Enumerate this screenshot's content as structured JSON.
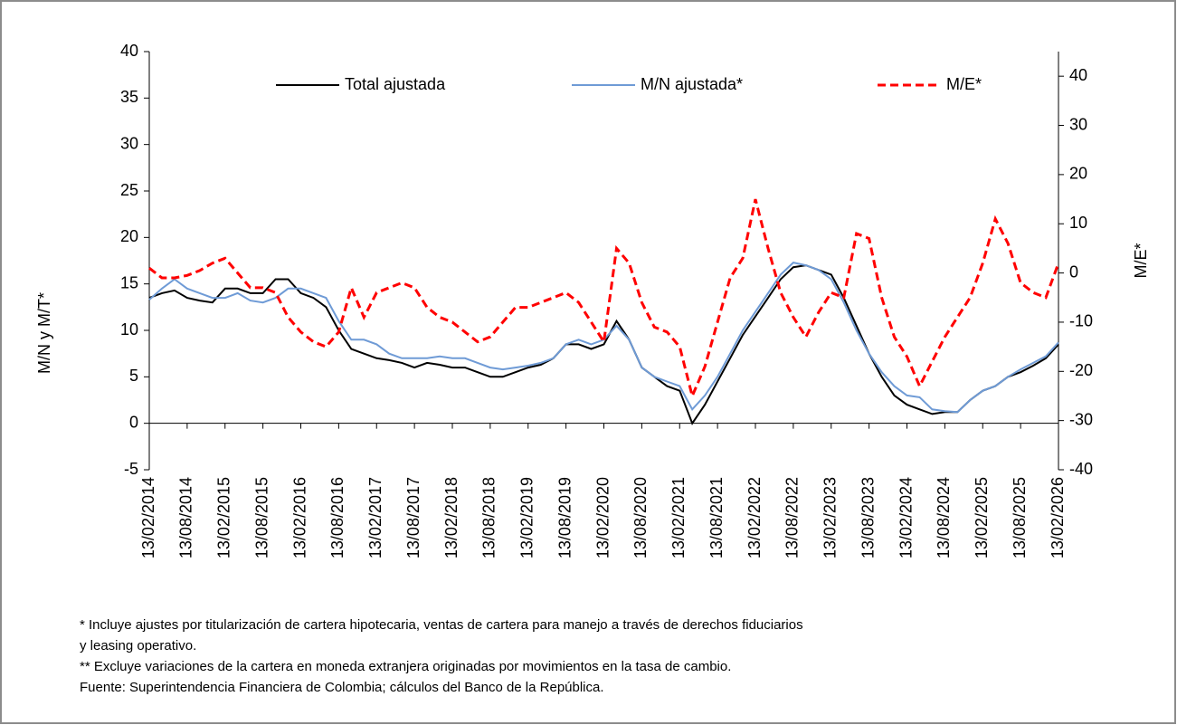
{
  "chart_data": {
    "type": "line",
    "ylabel": "M/N y M/T*",
    "y2label": "M/E*",
    "categories": [
      "13/02/2014",
      null,
      null,
      "13/08/2014",
      null,
      null,
      "13/02/2015",
      null,
      null,
      "13/08/2015",
      null,
      null,
      "13/02/2016",
      null,
      null,
      "13/08/2016",
      null,
      null,
      "13/02/2017",
      null,
      null,
      "13/08/2017",
      null,
      null,
      "13/02/2018",
      null,
      null,
      "13/08/2018",
      null,
      null,
      "13/02/2019",
      null,
      null,
      "13/08/2019",
      null,
      null,
      "13/02/2020",
      null,
      null,
      "13/08/2020",
      null,
      null,
      "13/02/2021",
      null,
      null,
      "13/08/2021",
      null,
      null,
      "13/02/2022",
      null,
      null,
      "13/08/2022",
      null,
      null,
      "13/02/2023",
      null,
      null,
      "13/08/2023",
      null,
      null,
      "13/02/2024",
      null,
      null,
      "13/08/2024",
      null,
      null,
      "13/02/2025",
      null,
      null,
      "13/08/2025",
      null,
      null,
      "13/02/2026"
    ],
    "series": [
      {
        "name": "Total ajustada",
        "color": "#000000",
        "dash": false,
        "values": [
          13.5,
          14,
          14.3,
          13.5,
          13.2,
          13,
          14.5,
          14.5,
          14,
          14,
          15.5,
          15.5,
          14,
          13.5,
          12.5,
          10,
          8,
          7.5,
          7,
          6.8,
          6.5,
          6,
          6.5,
          6.3,
          6,
          6,
          5.5,
          5,
          5,
          5.5,
          6,
          6.3,
          7,
          8.5,
          8.5,
          8,
          8.5,
          11,
          9,
          6,
          5,
          4,
          3.5,
          0,
          2,
          4.5,
          7,
          9.5,
          11.5,
          13.5,
          15.5,
          16.8,
          17,
          16.5,
          16,
          13.5,
          10.5,
          7.5,
          5,
          3,
          2,
          1.5,
          1,
          1.2,
          1.2,
          2.5,
          3.5,
          4,
          5,
          5.5,
          6.2,
          7,
          8.5
        ]
      },
      {
        "name": "M/N ajustada*",
        "color": "#6f9bd6",
        "dash": false,
        "values": [
          13.3,
          14.5,
          15.5,
          14.5,
          14,
          13.5,
          13.5,
          14,
          13.2,
          13,
          13.5,
          14.5,
          14.5,
          14,
          13.5,
          11,
          9,
          9,
          8.5,
          7.5,
          7,
          7,
          7,
          7.2,
          7,
          7,
          6.5,
          6,
          5.8,
          6,
          6.2,
          6.5,
          7,
          8.5,
          9,
          8.5,
          9,
          10.5,
          9,
          6,
          5,
          4.5,
          4,
          1.5,
          3,
          5,
          7.5,
          10,
          12,
          14,
          16,
          17.3,
          17,
          16.5,
          15.5,
          13,
          10,
          7.5,
          5.5,
          4,
          3,
          2.8,
          1.5,
          1.3,
          1.2,
          2.5,
          3.5,
          4,
          5,
          5.8,
          6.5,
          7.2,
          8.7
        ]
      },
      {
        "name": "M/E*",
        "color": "#ff0000",
        "dash": true,
        "axis": "y2",
        "values": [
          1,
          -1,
          -1,
          -0.5,
          0.5,
          2,
          3,
          0,
          -3,
          -3,
          -4,
          -9,
          -12,
          -14,
          -15,
          -12,
          -3,
          -9,
          -4,
          -3,
          -2,
          -3,
          -7,
          -9,
          -10,
          -12,
          -14,
          -13,
          -10,
          -7,
          -7,
          -6,
          -5,
          -4,
          -6,
          -10,
          -14,
          5,
          2,
          -6,
          -11,
          -12,
          -15,
          -25,
          -19,
          -10,
          -1,
          3,
          15,
          5,
          -4,
          -9,
          -13,
          -8,
          -4,
          -5,
          8,
          7,
          -5,
          -13,
          -17,
          -23,
          -18,
          -13,
          -9,
          -5,
          2,
          11,
          6,
          -2,
          -4,
          -5,
          2
        ]
      }
    ],
    "ylim": [
      -5,
      40
    ],
    "yticks": [
      -5,
      0,
      5,
      10,
      15,
      20,
      25,
      30,
      35,
      40
    ],
    "y2lim": [
      -40,
      45
    ],
    "y2ticks": [
      -40,
      -30,
      -20,
      -10,
      0,
      10,
      20,
      30,
      40
    ],
    "notes": [
      "* Incluye ajustes por titularización de cartera hipotecaria, ventas de cartera para manejo a través de derechos fiduciarios",
      "y leasing operativo.",
      "** Excluye variaciones de la cartera en moneda extranjera originadas por movimientos en la tasa de cambio.",
      "Fuente: Superintendencia Financiera de Colombia; cálculos del Banco de la República."
    ]
  }
}
